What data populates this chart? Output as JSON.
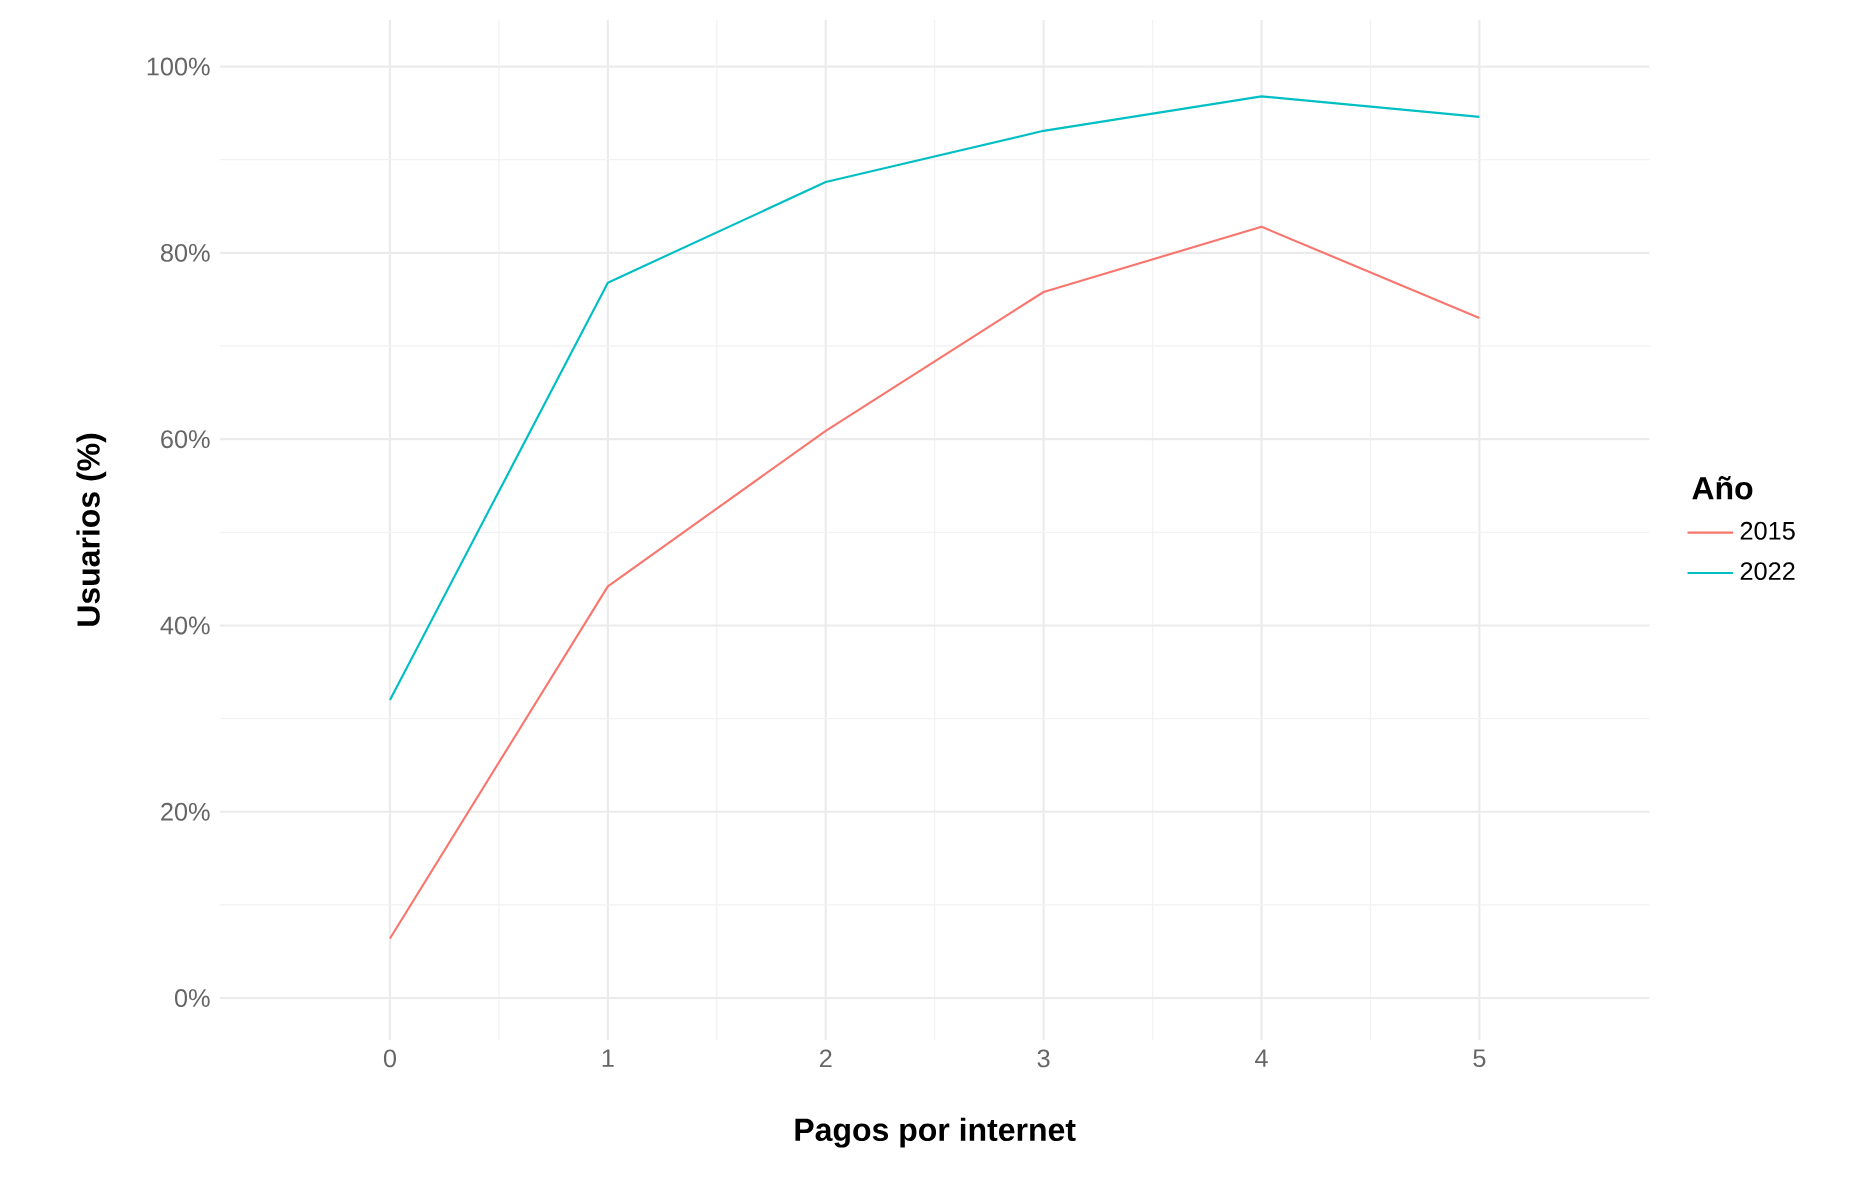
{
  "chart_data": {
    "type": "line",
    "xlabel": "Pagos por internet",
    "ylabel": "Usuarios (%)",
    "legend_title": "Año",
    "x": [
      0,
      1,
      2,
      3,
      4,
      5
    ],
    "series": [
      {
        "name": "2015",
        "color": "#f8766d",
        "values": [
          6.4,
          44.2,
          60.9,
          75.8,
          82.8,
          73.0
        ]
      },
      {
        "name": "2022",
        "color": "#00bfc4",
        "values": [
          32.0,
          76.8,
          87.6,
          93.1,
          96.8,
          94.6
        ]
      }
    ],
    "xlim": [
      -0.78,
      5.78
    ],
    "ylim": [
      -4.5,
      105
    ],
    "xticks": [
      0,
      1,
      2,
      3,
      4,
      5
    ],
    "yticks": [
      {
        "value": 0,
        "label": "0%"
      },
      {
        "value": 20,
        "label": "20%"
      },
      {
        "value": 40,
        "label": "40%"
      },
      {
        "value": 60,
        "label": "60%"
      },
      {
        "value": 80,
        "label": "80%"
      },
      {
        "value": 100,
        "label": "100%"
      }
    ],
    "grid": true,
    "legend": "right",
    "marker": "none",
    "line_style": "solid"
  }
}
